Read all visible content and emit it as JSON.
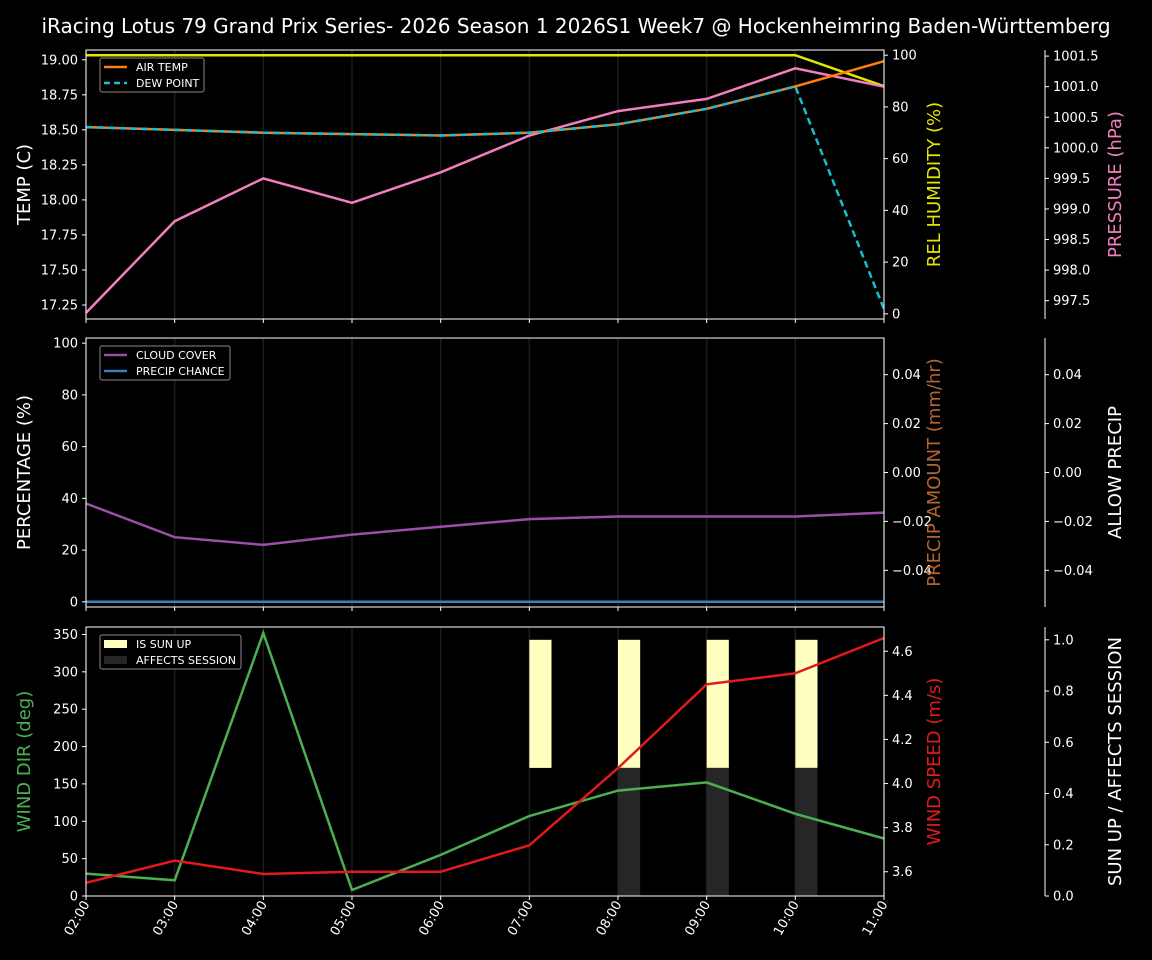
{
  "title": "iRacing Lotus 79 Grand Prix Series- 2026 Season 1 2026S1 Week7 @ Hockenheimring Baden-Württemberg",
  "colors": {
    "background": "#000000",
    "air_temp": "#ff7f0e",
    "dew_point": "#17becf",
    "humidity": "#e5e500",
    "pressure": "#f17fbf",
    "cloud_cover": "#9b4fa8",
    "precip_chance": "#3a7fc0",
    "precip_amount_label": "#b5652e",
    "wind_dir": "#4caf50",
    "wind_speed": "#e31a1c",
    "sun_up": "#ffffc0",
    "affects_session": "#262626"
  },
  "chart_data": [
    {
      "type": "line",
      "panel": "temperature",
      "x": [
        "02:00",
        "03:00",
        "04:00",
        "05:00",
        "06:00",
        "07:00",
        "08:00",
        "09:00",
        "10:00",
        "11:00"
      ],
      "series": [
        {
          "name": "AIR TEMP",
          "axis": "left",
          "values": [
            18.52,
            18.5,
            18.48,
            18.47,
            18.46,
            18.48,
            18.54,
            18.65,
            18.81,
            18.99
          ]
        },
        {
          "name": "DEW POINT",
          "axis": "left",
          "style": "dashed",
          "values": [
            18.52,
            18.5,
            18.48,
            18.47,
            18.46,
            18.48,
            18.54,
            18.65,
            18.81,
            17.22
          ]
        },
        {
          "name": "REL HUMIDITY",
          "axis": "right1",
          "values": [
            100,
            100,
            100,
            100,
            100,
            100,
            100,
            100,
            100,
            88
          ]
        },
        {
          "name": "PRESSURE",
          "axis": "right2",
          "values": [
            997.3,
            998.8,
            999.5,
            999.1,
            999.6,
            1000.2,
            1000.6,
            1000.8,
            1001.3,
            1001.0
          ]
        }
      ],
      "ylabel": "TEMP (C)",
      "ylabel_right1": "REL HUMIDITY (%)",
      "ylabel_right2": "PRESSURE (hPa)",
      "yticks": [
        "17.25",
        "17.50",
        "17.75",
        "18.00",
        "18.25",
        "18.50",
        "18.75",
        "19.00"
      ],
      "yticks_right1": [
        "0",
        "20",
        "40",
        "60",
        "80",
        "100"
      ],
      "yticks_right2": [
        "997.5",
        "998.0",
        "998.5",
        "999.0",
        "999.5",
        "1000.0",
        "1000.5",
        "1001.0",
        "1001.5"
      ],
      "ylim": [
        17.15,
        19.07
      ],
      "ylim_right1": [
        -2,
        102
      ],
      "ylim_right2": [
        997.2,
        1001.6
      ],
      "legend": [
        "AIR TEMP",
        "DEW POINT"
      ],
      "legend_position": "upper left",
      "grid": "vertical"
    },
    {
      "type": "line",
      "panel": "precipitation",
      "x": [
        "02:00",
        "03:00",
        "04:00",
        "05:00",
        "06:00",
        "07:00",
        "08:00",
        "09:00",
        "10:00",
        "11:00"
      ],
      "series": [
        {
          "name": "CLOUD COVER",
          "axis": "left",
          "values": [
            38,
            25,
            22,
            26,
            29,
            32,
            33,
            33,
            33,
            34.5
          ]
        },
        {
          "name": "PRECIP CHANCE",
          "axis": "left",
          "values": [
            0,
            0,
            0,
            0,
            0,
            0,
            0,
            0,
            0,
            0
          ]
        }
      ],
      "ylabel": "PERCENTAGE (%)",
      "ylabel_right1": "PRECIP AMOUNT (mm/hr)",
      "ylabel_right2": "ALLOW PRECIP",
      "yticks": [
        "0",
        "20",
        "40",
        "60",
        "80",
        "100"
      ],
      "yticks_right1": [
        "−0.04",
        "−0.02",
        "0.00",
        "0.02",
        "0.04"
      ],
      "yticks_right2": [
        "−0.04",
        "−0.02",
        "0.00",
        "0.02",
        "0.04"
      ],
      "ylim": [
        -2,
        102
      ],
      "ylim_right1": [
        -0.055,
        0.055
      ],
      "legend": [
        "CLOUD COVER",
        "PRECIP CHANCE"
      ],
      "legend_position": "upper left",
      "grid": "vertical"
    },
    {
      "type": "line",
      "panel": "wind",
      "x": [
        "02:00",
        "03:00",
        "04:00",
        "05:00",
        "06:00",
        "07:00",
        "08:00",
        "09:00",
        "10:00",
        "11:00"
      ],
      "series": [
        {
          "name": "WIND DIR",
          "axis": "left",
          "values": [
            30,
            21,
            352,
            8,
            55,
            107,
            141,
            152,
            110,
            77
          ]
        },
        {
          "name": "WIND SPEED",
          "axis": "right1",
          "values": [
            3.55,
            3.65,
            3.59,
            3.6,
            3.6,
            3.72,
            4.07,
            4.45,
            4.5,
            4.66
          ]
        },
        {
          "name": "IS SUN UP",
          "axis": "right2",
          "type": "bar",
          "bars": [
            {
              "x": "07:00",
              "bottom": 0.5,
              "top": 1.0
            },
            {
              "x": "08:00",
              "bottom": 0.5,
              "top": 1.0
            },
            {
              "x": "09:00",
              "bottom": 0.5,
              "top": 1.0
            },
            {
              "x": "10:00",
              "bottom": 0.5,
              "top": 1.0
            }
          ]
        },
        {
          "name": "AFFECTS SESSION",
          "axis": "right2",
          "type": "bar",
          "bars": [
            {
              "x": "08:00",
              "bottom": 0.0,
              "top": 0.5
            },
            {
              "x": "09:00",
              "bottom": 0.0,
              "top": 0.5
            },
            {
              "x": "10:00",
              "bottom": 0.0,
              "top": 0.5
            }
          ]
        }
      ],
      "ylabel": "WIND DIR (deg)",
      "ylabel_right1": "WIND SPEED (m/s)",
      "ylabel_right2": "SUN UP / AFFECTS SESSION",
      "yticks": [
        "0",
        "50",
        "100",
        "150",
        "200",
        "250",
        "300",
        "350"
      ],
      "yticks_right1": [
        "3.6",
        "3.8",
        "4.0",
        "4.2",
        "4.4",
        "4.6"
      ],
      "yticks_right2": [
        "0.0",
        "0.2",
        "0.4",
        "0.6",
        "0.8",
        "1.0"
      ],
      "ylim": [
        0,
        360
      ],
      "ylim_right1": [
        3.49,
        4.71
      ],
      "ylim_right2": [
        0,
        1.05
      ],
      "legend": [
        "IS SUN UP",
        "AFFECTS SESSION"
      ],
      "legend_position": "upper left",
      "grid": "vertical"
    }
  ]
}
